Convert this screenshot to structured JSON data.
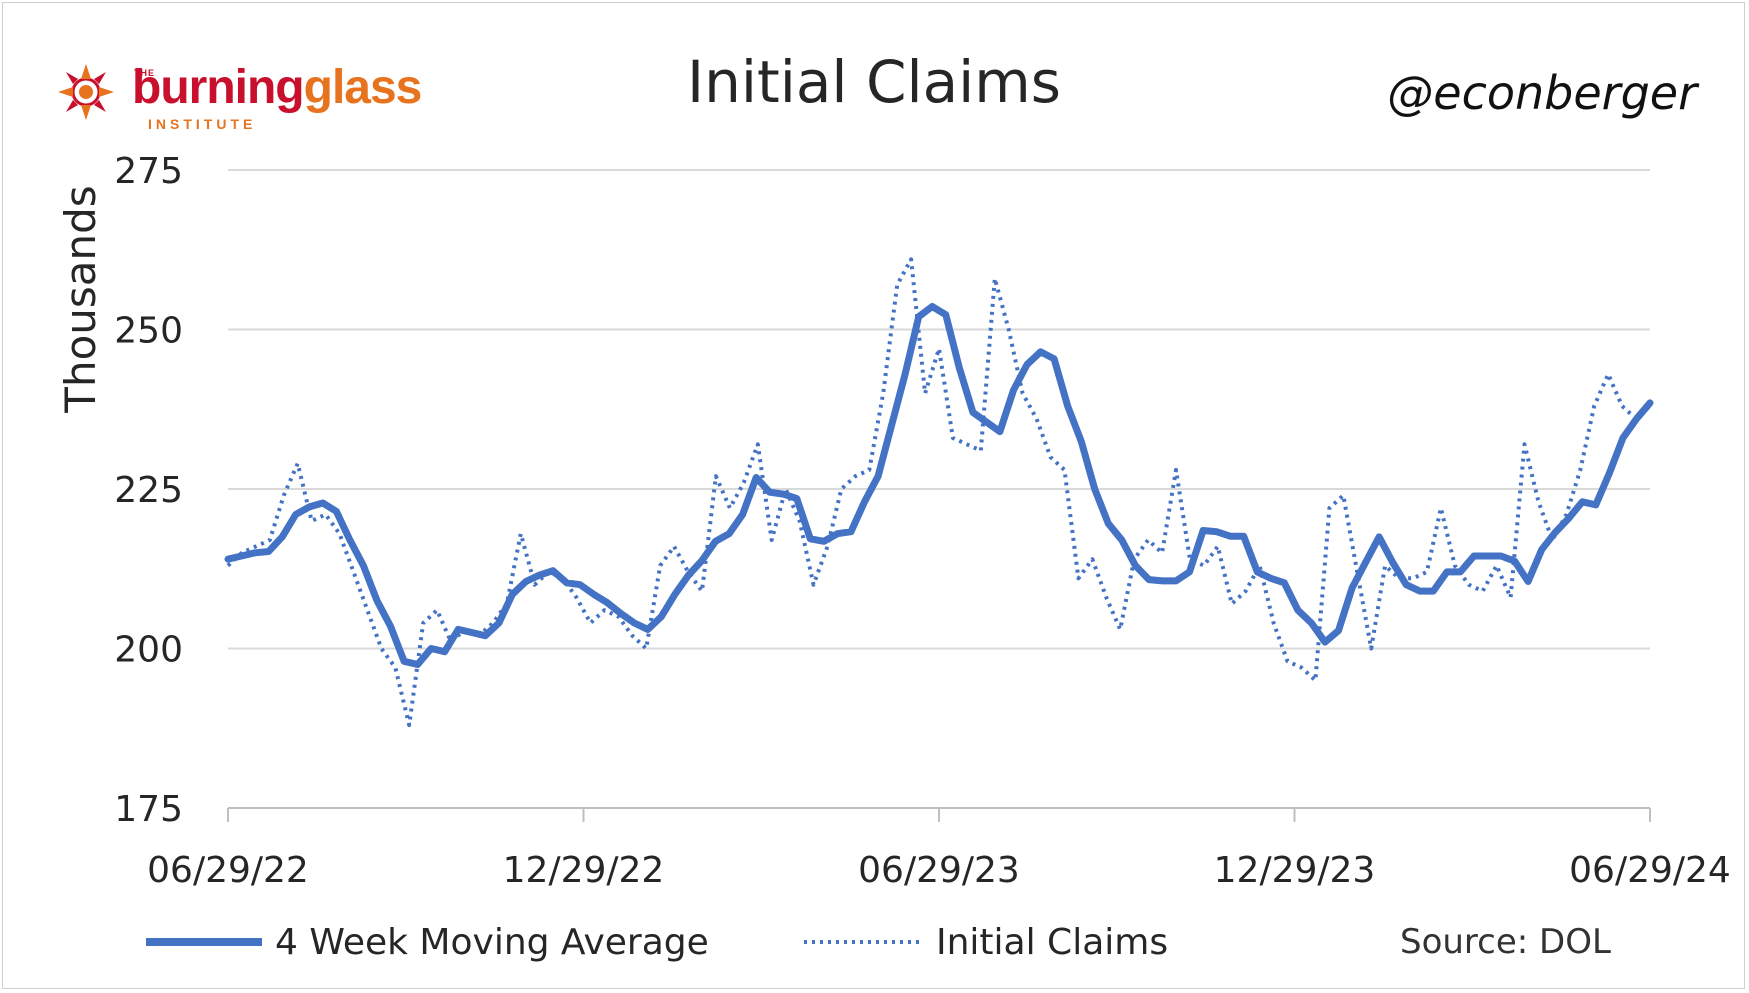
{
  "branding": {
    "logo_the": "THE",
    "logo_word_a": "burning",
    "logo_word_b": "glass",
    "logo_institute": "INSTITUTE",
    "handle": "@econberger",
    "source": "Source: DOL"
  },
  "chart_data": {
    "type": "line",
    "title": "Initial Claims",
    "ylabel": "Thousands",
    "xlabel": "",
    "ylim": [
      175,
      275
    ],
    "yticks": [
      175,
      200,
      225,
      250,
      275
    ],
    "xticks": [
      "06/29/22",
      "12/29/22",
      "06/29/23",
      "12/29/23",
      "06/29/24"
    ],
    "x_start": "06/29/22",
    "x_end": "06/29/24",
    "grid": true,
    "legend_position": "bottom",
    "colors": {
      "series": "#4472c4",
      "grid": "#d9d9d9",
      "axis": "#bfbfbf",
      "text": "#262626"
    },
    "series": [
      {
        "name": "4 Week Moving Average",
        "style": "solid",
        "values": [
          214,
          214.5,
          215,
          215.2,
          217.5,
          221,
          222.2,
          222.8,
          221.5,
          217,
          213,
          207.5,
          203.5,
          198,
          197.5,
          200,
          199.5,
          203,
          202.5,
          202,
          204,
          208.5,
          210.5,
          211.5,
          212.2,
          210.3,
          210,
          208.5,
          207.2,
          205.5,
          204,
          203,
          205,
          208.5,
          211.5,
          213.8,
          216.8,
          218,
          221,
          226.8,
          224.5,
          224.2,
          223.5,
          217.2,
          216.8,
          218,
          218.3,
          223,
          227,
          235,
          243,
          252,
          253.6,
          252.3,
          244,
          237,
          235.5,
          234,
          240.5,
          244.5,
          246.5,
          245.4,
          238,
          232.5,
          225,
          219.6,
          217,
          213,
          210.8,
          210.6,
          210.6,
          212,
          218.5,
          218.3,
          217.6,
          217.6,
          212,
          211,
          210.3,
          206,
          204,
          201,
          202.8,
          209.5,
          213.5,
          217.5,
          213.5,
          210,
          209,
          209,
          212,
          212,
          214.5,
          214.5,
          214.5,
          213.7,
          210.5,
          215.5,
          218.2,
          220.4,
          223,
          222.5,
          227.5,
          233,
          236,
          238.5
        ]
      },
      {
        "name": "Initial Claims",
        "style": "dotted",
        "values": [
          213,
          215,
          216,
          217,
          224,
          229,
          220,
          221,
          218,
          212,
          206,
          200,
          197,
          188,
          204,
          206,
          201,
          203,
          202,
          204,
          207,
          218,
          210,
          212,
          211,
          208,
          204,
          206,
          205,
          202,
          200,
          213,
          216,
          212,
          209,
          227,
          222,
          226,
          232,
          217,
          225,
          220,
          210,
          216,
          225,
          227,
          228,
          240,
          257,
          261,
          240,
          247,
          233,
          232,
          231,
          258,
          250,
          240,
          236,
          230,
          228,
          211,
          214,
          208,
          203,
          214,
          217,
          215,
          228,
          214,
          213,
          216,
          207,
          209,
          213,
          204,
          198,
          197,
          195,
          222,
          224,
          212,
          200,
          213,
          211,
          211,
          212,
          222,
          213,
          210,
          209,
          213,
          208,
          232,
          223,
          217,
          221,
          228,
          238,
          243,
          238,
          236,
          238
        ]
      }
    ]
  }
}
